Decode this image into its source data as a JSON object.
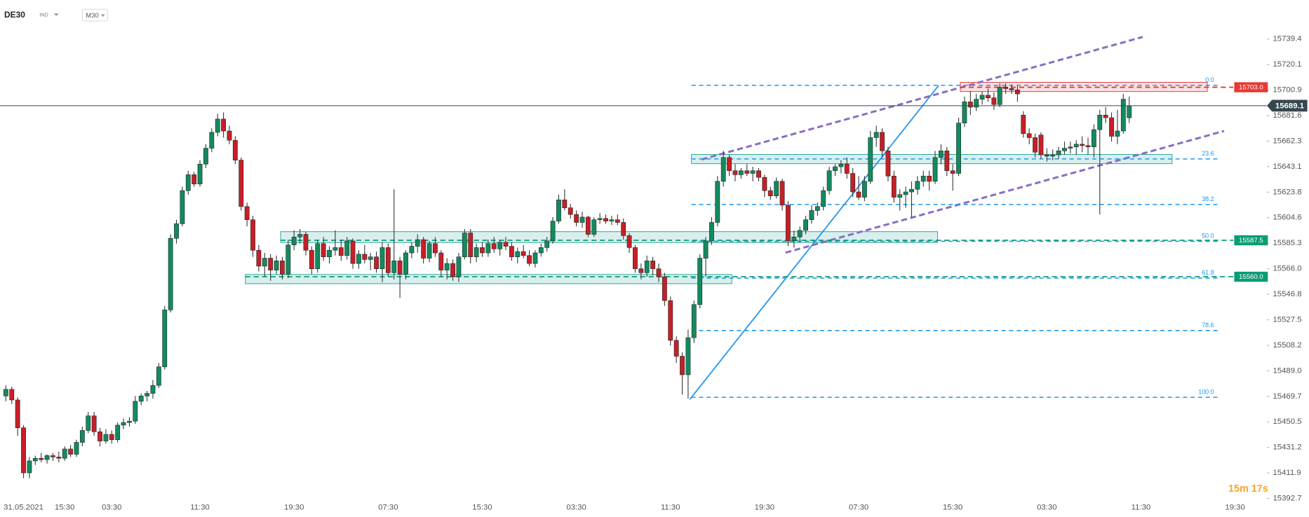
{
  "header": {
    "symbol": "DE30",
    "market": "IND",
    "timeframe": "M30"
  },
  "countdown": "15m 17s",
  "chart_data": {
    "type": "candlestick",
    "ylim": [
      15380,
      15765
    ],
    "yticks": [
      15739.4,
      15720.1,
      15700.9,
      15681.6,
      15662.3,
      15643.1,
      15623.8,
      15604.6,
      15585.3,
      {
        "value": 15566,
        "label": "15566.0"
      },
      15546.8,
      15527.5,
      15508.2,
      {
        "value": 15489,
        "label": "15489.0"
      },
      15469.7,
      15450.5,
      15431.2,
      15411.9,
      15392.7
    ],
    "up_color": "#138a5e",
    "down_color": "#c81e28",
    "last_price": 15689.1,
    "categories": [
      null,
      null,
      null,
      "31.05.2021",
      null,
      null,
      null,
      null,
      null,
      null,
      "15:30",
      null,
      null,
      null,
      null,
      null,
      null,
      null,
      "03:30",
      null,
      null,
      null,
      null,
      null,
      null,
      null,
      null,
      null,
      null,
      null,
      null,
      null,
      null,
      "11:30",
      null,
      null,
      null,
      null,
      null,
      null,
      null,
      null,
      null,
      null,
      null,
      null,
      null,
      null,
      null,
      "19:30",
      null,
      null,
      null,
      null,
      null,
      null,
      null,
      null,
      null,
      null,
      null,
      null,
      null,
      null,
      null,
      "07:30",
      null,
      null,
      null,
      null,
      null,
      null,
      null,
      null,
      null,
      null,
      null,
      null,
      null,
      null,
      null,
      "15:30",
      null,
      null,
      null,
      null,
      null,
      null,
      null,
      null,
      null,
      null,
      null,
      null,
      null,
      null,
      null,
      "03:30",
      null,
      null,
      null,
      null,
      null,
      null,
      null,
      null,
      null,
      null,
      null,
      null,
      null,
      null,
      null,
      "11:30",
      null,
      null,
      null,
      null,
      null,
      null,
      null,
      null,
      null,
      null,
      null,
      null,
      null,
      null,
      null,
      "19:30",
      null,
      null,
      null,
      null,
      null,
      null,
      null,
      null,
      null,
      null,
      null,
      null,
      null,
      null,
      null,
      "07:30",
      null,
      null,
      null,
      null,
      null,
      null,
      null,
      null,
      null,
      null,
      null,
      null,
      null,
      null,
      null,
      "15:30",
      null,
      null,
      null,
      null,
      null,
      null,
      null,
      null,
      null,
      null,
      null,
      null,
      null,
      null,
      null,
      "03:30",
      null,
      null,
      null,
      null,
      null,
      null,
      null,
      null,
      null,
      null,
      null,
      null,
      null,
      null,
      null,
      "11:30",
      null,
      null,
      null,
      null,
      null,
      null,
      null,
      null,
      null,
      null,
      null,
      null,
      null,
      null,
      null,
      "19:30"
    ],
    "ohlc": [
      [
        15470,
        15478,
        15466,
        15475
      ],
      [
        15475,
        15477,
        15464,
        15467
      ],
      [
        15467,
        15469,
        15440,
        15446
      ],
      [
        15446,
        15448,
        15408,
        15412
      ],
      [
        15412,
        15424,
        15408,
        15421
      ],
      [
        15421,
        15425,
        15418,
        15423
      ],
      [
        15423,
        15427,
        15420,
        15422
      ],
      [
        15422,
        15426,
        15419,
        15425
      ],
      [
        15425,
        15427,
        15421,
        15424
      ],
      [
        15424,
        15428,
        15420,
        15423
      ],
      [
        15423,
        15432,
        15421,
        15430
      ],
      [
        15430,
        15433,
        15424,
        15426
      ],
      [
        15426,
        15437,
        15424,
        15435
      ],
      [
        15435,
        15447,
        15432,
        15444
      ],
      [
        15444,
        15458,
        15442,
        15455
      ],
      [
        15455,
        15458,
        15440,
        15443
      ],
      [
        15443,
        15446,
        15432,
        15436
      ],
      [
        15436,
        15445,
        15434,
        15441
      ],
      [
        15441,
        15444,
        15434,
        15437
      ],
      [
        15437,
        15450,
        15435,
        15448
      ],
      [
        15448,
        15453,
        15445,
        15450
      ],
      [
        15450,
        15454,
        15447,
        15451
      ],
      [
        15451,
        15470,
        15449,
        15466
      ],
      [
        15466,
        15472,
        15463,
        15470
      ],
      [
        15470,
        15474,
        15466,
        15472
      ],
      [
        15472,
        15482,
        15468,
        15478
      ],
      [
        15478,
        15495,
        15476,
        15492
      ],
      [
        15492,
        15538,
        15490,
        15535
      ],
      [
        15535,
        15592,
        15533,
        15589
      ],
      [
        15589,
        15603,
        15585,
        15600
      ],
      [
        15600,
        15628,
        15598,
        15625
      ],
      [
        15625,
        15640,
        15622,
        15637
      ],
      [
        15637,
        15639,
        15628,
        15630
      ],
      [
        15630,
        15648,
        15628,
        15645
      ],
      [
        15645,
        15660,
        15642,
        15657
      ],
      [
        15657,
        15672,
        15654,
        15669
      ],
      [
        15669,
        15683,
        15666,
        15679
      ],
      [
        15679,
        15684,
        15665,
        15670
      ],
      [
        15670,
        15674,
        15660,
        15663
      ],
      [
        15663,
        15666,
        15645,
        15648
      ],
      [
        15648,
        15650,
        15610,
        15613
      ],
      [
        15613,
        15616,
        15598,
        15603
      ],
      [
        15603,
        15606,
        15575,
        15580
      ],
      [
        15580,
        15584,
        15564,
        15568
      ],
      [
        15568,
        15578,
        15560,
        15574
      ],
      [
        15574,
        15577,
        15557,
        15565
      ],
      [
        15565,
        15576,
        15562,
        15572
      ],
      [
        15572,
        15575,
        15558,
        15562
      ],
      [
        15562,
        15588,
        15559,
        15584
      ],
      [
        15584,
        15595,
        15580,
        15590
      ],
      [
        15590,
        15596,
        15585,
        15592
      ],
      [
        15592,
        15594,
        15576,
        15580
      ],
      [
        15580,
        15583,
        15562,
        15566
      ],
      [
        15566,
        15588,
        15563,
        15585
      ],
      [
        15585,
        15590,
        15572,
        15575
      ],
      [
        15575,
        15583,
        15570,
        15580
      ],
      [
        15580,
        15595,
        15576,
        15582
      ],
      [
        15582,
        15588,
        15572,
        15576
      ],
      [
        15576,
        15590,
        15573,
        15587
      ],
      [
        15587,
        15589,
        15566,
        15570
      ],
      [
        15570,
        15580,
        15566,
        15577
      ],
      [
        15577,
        15584,
        15570,
        15573
      ],
      [
        15573,
        15578,
        15565,
        15575
      ],
      [
        15575,
        15579,
        15563,
        15566
      ],
      [
        15566,
        15586,
        15556,
        15582
      ],
      [
        15582,
        15585,
        15560,
        15563
      ],
      [
        15563,
        15626,
        15558,
        15572
      ],
      [
        15572,
        15575,
        15544,
        15562
      ],
      [
        15562,
        15580,
        15558,
        15578
      ],
      [
        15578,
        15586,
        15574,
        15583
      ],
      [
        15583,
        15592,
        15578,
        15588
      ],
      [
        15588,
        15590,
        15570,
        15574
      ],
      [
        15574,
        15587,
        15571,
        15585
      ],
      [
        15585,
        15590,
        15575,
        15578
      ],
      [
        15578,
        15580,
        15560,
        15565
      ],
      [
        15565,
        15574,
        15558,
        15570
      ],
      [
        15570,
        15573,
        15557,
        15560
      ],
      [
        15560,
        15578,
        15556,
        15575
      ],
      [
        15575,
        15596,
        15573,
        15593
      ],
      [
        15593,
        15596,
        15570,
        15575
      ],
      [
        15575,
        15585,
        15571,
        15582
      ],
      [
        15582,
        15586,
        15575,
        15578
      ],
      [
        15578,
        15588,
        15575,
        15585
      ],
      [
        15585,
        15590,
        15578,
        15581
      ],
      [
        15581,
        15588,
        15576,
        15586
      ],
      [
        15586,
        15590,
        15580,
        15583
      ],
      [
        15583,
        15586,
        15572,
        15575
      ],
      [
        15575,
        15582,
        15570,
        15579
      ],
      [
        15579,
        15584,
        15574,
        15576
      ],
      [
        15576,
        15580,
        15568,
        15570
      ],
      [
        15570,
        15580,
        15567,
        15578
      ],
      [
        15578,
        15585,
        15575,
        15582
      ],
      [
        15582,
        15590,
        15579,
        15587
      ],
      [
        15587,
        15605,
        15585,
        15602
      ],
      [
        15602,
        15622,
        15600,
        15618
      ],
      [
        15618,
        15626,
        15610,
        15612
      ],
      [
        15612,
        15615,
        15604,
        15607
      ],
      [
        15607,
        15610,
        15598,
        15601
      ],
      [
        15601,
        15609,
        15597,
        15605
      ],
      [
        15605,
        15606,
        15590,
        15592
      ],
      [
        15592,
        15605,
        15590,
        15603
      ],
      [
        15603,
        15608,
        15600,
        15604
      ],
      [
        15604,
        15607,
        15600,
        15602
      ],
      [
        15602,
        15606,
        15599,
        15603
      ],
      [
        15603,
        15607,
        15599,
        15601
      ],
      [
        15601,
        15604,
        15588,
        15591
      ],
      [
        15591,
        15593,
        15578,
        15582
      ],
      [
        15582,
        15584,
        15563,
        15566
      ],
      [
        15566,
        15570,
        15558,
        15563
      ],
      [
        15563,
        15576,
        15560,
        15572
      ],
      [
        15572,
        15575,
        15561,
        15566
      ],
      [
        15566,
        15570,
        15556,
        15560
      ],
      [
        15560,
        15563,
        15538,
        15542
      ],
      [
        15542,
        15545,
        15508,
        15512
      ],
      [
        15512,
        15515,
        15495,
        15500
      ],
      [
        15500,
        15503,
        15471,
        15486
      ],
      [
        15486,
        15520,
        15468,
        15514
      ],
      [
        15514,
        15542,
        15510,
        15539
      ],
      [
        15539,
        15577,
        15536,
        15574
      ],
      [
        15574,
        15590,
        15560,
        15587
      ],
      [
        15587,
        15605,
        15584,
        15601
      ],
      [
        15601,
        15636,
        15598,
        15632
      ],
      [
        15632,
        15655,
        15628,
        15650
      ],
      [
        15650,
        15652,
        15636,
        15640
      ],
      [
        15640,
        15645,
        15632,
        15637
      ],
      [
        15637,
        15642,
        15634,
        15640
      ],
      [
        15640,
        15645,
        15636,
        15638
      ],
      [
        15638,
        15643,
        15632,
        15640
      ],
      [
        15640,
        15642,
        15632,
        15635
      ],
      [
        15635,
        15637,
        15620,
        15625
      ],
      [
        15625,
        15628,
        15618,
        15621
      ],
      [
        15621,
        15635,
        15619,
        15632
      ],
      [
        15632,
        15634,
        15610,
        15614
      ],
      [
        15614,
        15617,
        15583,
        15587
      ],
      [
        15587,
        15595,
        15582,
        15590
      ],
      [
        15590,
        15598,
        15586,
        15595
      ],
      [
        15595,
        15606,
        15592,
        15603
      ],
      [
        15603,
        15614,
        15600,
        15610
      ],
      [
        15610,
        15616,
        15606,
        15613
      ],
      [
        15613,
        15628,
        15610,
        15625
      ],
      [
        15625,
        15643,
        15622,
        15640
      ],
      [
        15640,
        15645,
        15636,
        15643
      ],
      [
        15643,
        15648,
        15638,
        15645
      ],
      [
        15645,
        15650,
        15634,
        15638
      ],
      [
        15638,
        15642,
        15620,
        15624
      ],
      [
        15624,
        15636,
        15618,
        15620
      ],
      [
        15620,
        15636,
        15617,
        15632
      ],
      [
        15632,
        15670,
        15630,
        15665
      ],
      [
        15665,
        15674,
        15658,
        15669
      ],
      [
        15669,
        15672,
        15650,
        15655
      ],
      [
        15655,
        15658,
        15632,
        15636
      ],
      [
        15636,
        15640,
        15616,
        15620
      ],
      [
        15620,
        15626,
        15610,
        15622
      ],
      [
        15622,
        15628,
        15612,
        15624
      ],
      [
        15624,
        15632,
        15605,
        15626
      ],
      [
        15626,
        15636,
        15622,
        15632
      ],
      [
        15632,
        15640,
        15628,
        15636
      ],
      [
        15636,
        15640,
        15625,
        15632
      ],
      [
        15632,
        15655,
        15630,
        15650
      ],
      [
        15650,
        15660,
        15645,
        15655
      ],
      [
        15655,
        15658,
        15636,
        15640
      ],
      [
        15640,
        15645,
        15625,
        15638
      ],
      [
        15638,
        15680,
        15636,
        15676
      ],
      [
        15676,
        15696,
        15673,
        15692
      ],
      [
        15692,
        15700,
        15682,
        15688
      ],
      [
        15688,
        15698,
        15685,
        15694
      ],
      [
        15694,
        15700,
        15690,
        15697
      ],
      [
        15697,
        15702,
        15692,
        15695
      ],
      [
        15695,
        15699,
        15686,
        15690
      ],
      [
        15690,
        15706,
        15688,
        15703
      ],
      [
        15703,
        15706,
        15698,
        15702
      ],
      [
        15702,
        15705,
        15698,
        15701
      ],
      [
        15701,
        15704,
        15692,
        15698
      ],
      [
        15682,
        15685,
        15665,
        15668
      ],
      [
        15668,
        15672,
        15660,
        15665
      ],
      [
        15665,
        15668,
        15650,
        15654
      ],
      [
        15667,
        15669,
        15649,
        15652
      ],
      [
        15652,
        15657,
        15647,
        15651
      ],
      [
        15651,
        15656,
        15648,
        15652
      ],
      [
        15652,
        15658,
        15649,
        15655
      ],
      [
        15655,
        15662,
        15652,
        15657
      ],
      [
        15657,
        15662,
        15653,
        15658
      ],
      [
        15658,
        15663,
        15652,
        15660
      ],
      [
        15660,
        15666,
        15654,
        15659
      ],
      [
        15659,
        15665,
        15652,
        15658
      ],
      [
        15658,
        15675,
        15650,
        15671
      ],
      [
        15671,
        15686,
        15607,
        15682
      ],
      [
        15682,
        15688,
        15676,
        15680
      ],
      [
        15680,
        15684,
        15662,
        15666
      ],
      [
        15666,
        15686,
        15660,
        15670
      ],
      [
        15670,
        15698,
        15668,
        15694
      ],
      [
        15680,
        15696,
        15676,
        15689.1
      ],
      null,
      null,
      null,
      null,
      null,
      null,
      null,
      null,
      null,
      null,
      null,
      null,
      null,
      null,
      null,
      null,
      null,
      null
    ],
    "fibonacci": {
      "high": 15704.5,
      "low": 15469,
      "color": "#2196f3",
      "levels": [
        {
          "value": 0,
          "label": "0.0"
        },
        23.6,
        38.2,
        {
          "value": 50,
          "label": "50.0"
        },
        61.8,
        78.6,
        {
          "value": 100,
          "label": "100.0"
        }
      ]
    },
    "levels": [
      {
        "price": {
          "value": 15703,
          "label": "15703.0"
        },
        "color": "#e53935"
      },
      {
        "price": 15587.5,
        "color": "#0a9d74"
      },
      {
        "price": {
          "value": 15560,
          "label": "15560.0"
        },
        "color": "#0a9d74"
      }
    ]
  }
}
